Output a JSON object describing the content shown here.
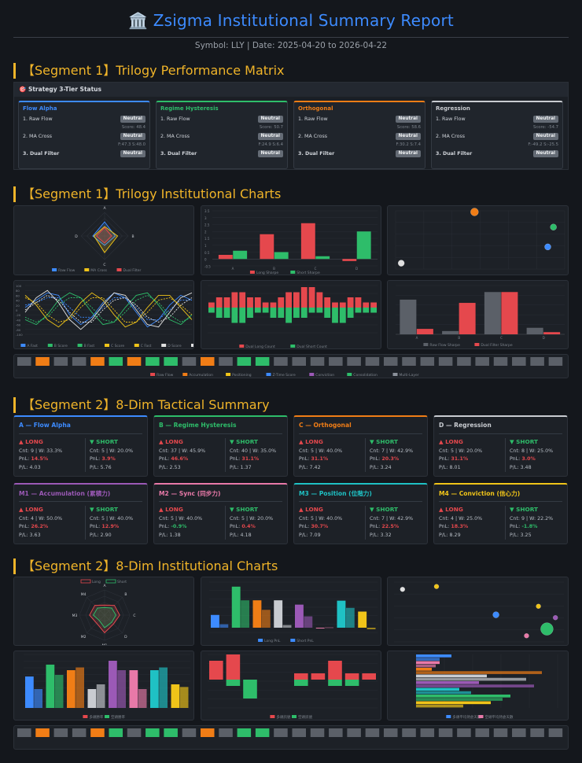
{
  "header": {
    "icon": "🏛️",
    "title": "Zsigma Institutional Summary Report",
    "subtitle": "Symbol: LLY | Date: 2025-04-20 to 2026-04-22"
  },
  "colors": {
    "accent": "#3d8bff",
    "section": "#f0b429",
    "flow": "#3d8bff",
    "regime": "#2ebd6a",
    "ortho": "#f07d16",
    "regress": "#c9ccd1",
    "m1": "#9b59b6",
    "m2": "#e879a8",
    "m3": "#1fc1c4",
    "m4": "#f0c419",
    "long": "#e5484d",
    "short": "#2ebd6a"
  },
  "sections": {
    "s1": "【Segment 1】Trilogy Performance Matrix",
    "s2": "【Segment 1】Trilogy Institutional Charts",
    "s3": "【Segment 2】8-Dim Tactical Summary",
    "s4": "【Segment 2】8-Dim Institutional Charts"
  },
  "matrix": {
    "header": "🎯 Strategy 3-Tier Status",
    "cards": [
      {
        "title": "Flow Alpha",
        "color": "#3d8bff",
        "rows": [
          {
            "label": "1. Raw Flow",
            "badge": "Neutral",
            "sub": "Score: 48.4"
          },
          {
            "label": "2. MA Cross",
            "badge": "Neutral",
            "sub": "F:47.3 S:48.0"
          },
          {
            "label": "3. Dual Filter",
            "badge": "Neutral",
            "sub": ""
          }
        ]
      },
      {
        "title": "Regime Hysteresis",
        "color": "#2ebd6a",
        "rows": [
          {
            "label": "1. Raw Flow",
            "badge": "Neutral",
            "sub": "Score: 50.7"
          },
          {
            "label": "2. MA Cross",
            "badge": "Neutral",
            "sub": "F:24.9 S:6.4"
          },
          {
            "label": "3. Dual Filter",
            "badge": "Neutral",
            "sub": ""
          }
        ]
      },
      {
        "title": "Orthogonal",
        "color": "#f07d16",
        "rows": [
          {
            "label": "1. Raw Flow",
            "badge": "Neutral",
            "sub": "Score: 58.6"
          },
          {
            "label": "2. MA Cross",
            "badge": "Neutral",
            "sub": "F:30.2 S:7.4"
          },
          {
            "label": "3. Dual Filter",
            "badge": "Neutral",
            "sub": ""
          }
        ]
      },
      {
        "title": "Regression",
        "color": "#c9ccd1",
        "rows": [
          {
            "label": "1. Raw Flow",
            "badge": "Neutral",
            "sub": "Score: -54.7"
          },
          {
            "label": "2. MA Cross",
            "badge": "Neutral",
            "sub": "F:-49.2 S:-25.5"
          },
          {
            "label": "3. Dual Filter",
            "badge": "Neutral",
            "sub": ""
          }
        ]
      }
    ]
  },
  "tactical": {
    "long_label": "▲ LONG",
    "short_label": "▼ SHORT",
    "cards": [
      {
        "title": "A — Flow Alpha",
        "color": "#3d8bff",
        "long": {
          "cnt": "Cnt: 9 | W: 33.3%",
          "pnl": "14.5%",
          "pl": "P/L: 4.03"
        },
        "short": {
          "cnt": "Cnt: 5 | W: 20.0%",
          "pnl": "3.9%",
          "pl": "P/L: 5.76"
        }
      },
      {
        "title": "B — Regime Hysteresis",
        "color": "#2ebd6a",
        "long": {
          "cnt": "Cnt: 37 | W: 45.9%",
          "pnl": "46.6%",
          "pl": "P/L: 2.53"
        },
        "short": {
          "cnt": "Cnt: 40 | W: 35.0%",
          "pnl": "31.1%",
          "pl": "P/L: 1.37"
        }
      },
      {
        "title": "C — Orthogonal",
        "color": "#f07d16",
        "long": {
          "cnt": "Cnt: 5 | W: 40.0%",
          "pnl": "31.1%",
          "pl": "P/L: 7.42"
        },
        "short": {
          "cnt": "Cnt: 7 | W: 42.9%",
          "pnl": "20.3%",
          "pl": "P/L: 3.24"
        }
      },
      {
        "title": "D — Regression",
        "color": "#c9ccd1",
        "long": {
          "cnt": "Cnt: 5 | W: 20.0%",
          "pnl": "31.1%",
          "pl": "P/L: 8.01"
        },
        "short": {
          "cnt": "Cnt: 8 | W: 25.0%",
          "pnl": "3.0%",
          "pl": "P/L: 3.48"
        }
      },
      {
        "title": "M1 — Accumulation (累積力)",
        "color": "#9b59b6",
        "long": {
          "cnt": "Cnt: 4 | W: 50.0%",
          "pnl": "26.2%",
          "pl": "P/L: 3.63"
        },
        "short": {
          "cnt": "Cnt: 5 | W: 40.0%",
          "pnl": "12.9%",
          "pl": "P/L: 2.90"
        }
      },
      {
        "title": "M2 — Sync (同步力)",
        "color": "#e879a8",
        "long": {
          "cnt": "Cnt: 5 | W: 40.0%",
          "pnl": "-0.9%",
          "pl": "P/L: 1.38"
        },
        "short": {
          "cnt": "Cnt: 5 | W: 20.0%",
          "pnl": "0.4%",
          "pl": "P/L: 4.18"
        }
      },
      {
        "title": "M3 — Position (位階力)",
        "color": "#1fc1c4",
        "long": {
          "cnt": "Cnt: 5 | W: 40.0%",
          "pnl": "30.7%",
          "pl": "P/L: 7.09"
        },
        "short": {
          "cnt": "Cnt: 7 | W: 42.9%",
          "pnl": "22.5%",
          "pl": "P/L: 3.32"
        }
      },
      {
        "title": "M4 — Conviction (信心力)",
        "color": "#f0c419",
        "long": {
          "cnt": "Cnt: 4 | W: 25.0%",
          "pnl": "18.3%",
          "pl": "P/L: 8.29"
        },
        "short": {
          "cnt": "Cnt: 9 | W: 22.2%",
          "pnl": "-1.8%",
          "pl": "P/L: 3.25"
        }
      }
    ]
  },
  "chart_data": [
    {
      "id": "trilogy-radar",
      "type": "radar",
      "axes": [
        "A",
        "B",
        "C",
        "D"
      ],
      "series": [
        {
          "name": "Raw Flow",
          "color": "#3d8bff",
          "values": [
            60,
            45,
            40,
            50
          ]
        },
        {
          "name": "MA Cross",
          "color": "#f0c419",
          "values": [
            40,
            55,
            70,
            45
          ]
        },
        {
          "name": "Dual Filter",
          "color": "#e5484d",
          "values": [
            35,
            30,
            30,
            35
          ]
        }
      ]
    },
    {
      "id": "trilogy-sharpe",
      "type": "bar",
      "categories": [
        "A",
        "B",
        "C",
        "D"
      ],
      "ylim": [
        -0.5,
        3.5
      ],
      "yticks": [
        "3.5",
        "3",
        "2.5",
        "2",
        "1.5",
        "1",
        "0.5",
        "0",
        "-0.5"
      ],
      "series": [
        {
          "name": "Long Sharpe",
          "color": "#e5484d",
          "values": [
            0.3,
            1.8,
            2.6,
            -0.15
          ]
        },
        {
          "name": "Short Sharpe",
          "color": "#2ebd6a",
          "values": [
            0.6,
            0.5,
            0.2,
            2.0
          ]
        }
      ]
    },
    {
      "id": "trilogy-scatter",
      "type": "scatter",
      "xlim": [
        -10,
        50
      ],
      "ylim": [
        -5,
        45
      ],
      "points": [
        {
          "x": -8,
          "y": 0,
          "color": "#e0e0e0",
          "size": 4
        },
        {
          "x": 18,
          "y": 44,
          "color": "#f07d16",
          "size": 5
        },
        {
          "x": 44,
          "y": 14,
          "color": "#3d8bff",
          "size": 4
        },
        {
          "x": 46,
          "y": 31,
          "color": "#2ebd6a",
          "size": 4
        }
      ]
    },
    {
      "id": "trilogy-lines",
      "type": "line",
      "ylim": [
        -100,
        100
      ],
      "yticks": [
        "100",
        "80",
        "60",
        "40",
        "20",
        "0",
        "-20",
        "-40",
        "-60",
        "-80",
        "-100"
      ],
      "series": [
        {
          "name": "A Score",
          "color": "#3d8bff",
          "dash": false,
          "values": [
            10,
            40,
            70,
            60,
            -20,
            -60,
            -30,
            30,
            70,
            50,
            -10,
            -70,
            -40,
            20,
            60,
            40
          ]
        },
        {
          "name": "A Fast",
          "color": "#3d8bff",
          "dash": true,
          "values": [
            20,
            30,
            50,
            50,
            10,
            -30,
            -30,
            10,
            50,
            50,
            10,
            -40,
            -40,
            0,
            40,
            40
          ]
        },
        {
          "name": "B Score",
          "color": "#2ebd6a",
          "dash": false,
          "values": [
            -40,
            -60,
            -20,
            40,
            70,
            50,
            -10,
            -60,
            -50,
            10,
            60,
            70,
            20,
            -40,
            -60,
            -20
          ]
        },
        {
          "name": "B Fast",
          "color": "#2ebd6a",
          "dash": true,
          "values": [
            -30,
            -50,
            -30,
            20,
            50,
            50,
            10,
            -40,
            -50,
            -10,
            40,
            60,
            30,
            -20,
            -50,
            -30
          ]
        },
        {
          "name": "C Score",
          "color": "#f0c419",
          "dash": false,
          "values": [
            60,
            20,
            -40,
            -70,
            -30,
            30,
            70,
            40,
            -20,
            -70,
            -50,
            10,
            60,
            60,
            10,
            -40
          ]
        },
        {
          "name": "C Fast",
          "color": "#f0c419",
          "dash": true,
          "values": [
            50,
            30,
            -20,
            -50,
            -40,
            10,
            50,
            50,
            0,
            -50,
            -50,
            -10,
            40,
            50,
            20,
            -20
          ]
        },
        {
          "name": "D Score",
          "color": "#e0e0e0",
          "dash": false,
          "values": [
            -10,
            50,
            80,
            30,
            -40,
            -80,
            -40,
            20,
            70,
            60,
            0,
            -60,
            -70,
            -10,
            50,
            70
          ]
        },
        {
          "name": "D Fast",
          "color": "#e0e0e0",
          "dash": true,
          "values": [
            0,
            30,
            60,
            40,
            -10,
            -50,
            -50,
            0,
            40,
            50,
            20,
            -30,
            -50,
            -30,
            20,
            50
          ]
        }
      ]
    },
    {
      "id": "trilogy-dual",
      "type": "bar",
      "series": [
        {
          "name": "Dual Long Count",
          "color": "#e5484d",
          "values": [
            1,
            2,
            2,
            3,
            3,
            2,
            2,
            1,
            1,
            2,
            3,
            3,
            4,
            4,
            3,
            2,
            1,
            1,
            2,
            2,
            1,
            1
          ]
        },
        {
          "name": "Dual Short Count",
          "color": "#2ebd6a",
          "values": [
            -1,
            -2,
            -2,
            -3,
            -3,
            -2,
            -1,
            -1,
            -2,
            -2,
            -3,
            -2,
            -2,
            -1,
            -1,
            -2,
            -3,
            -3,
            -2,
            -1,
            -1,
            -1
          ]
        }
      ]
    },
    {
      "id": "trilogy-maxdd",
      "type": "bar",
      "categories": [
        "A",
        "B",
        "C",
        "D"
      ],
      "series": [
        {
          "name": "Raw Flow Sharpe",
          "color": "#5b6068",
          "values": [
            3.2,
            0.3,
            3.9,
            0.6
          ]
        },
        {
          "name": "Dual Filter Sharpe",
          "color": "#e5484d",
          "values": [
            0.5,
            2.9,
            3.9,
            0.2
          ]
        }
      ]
    },
    {
      "id": "trilogy-strip",
      "type": "heatmap",
      "legend": [
        "Raw Flow",
        "Accumulation",
        "Positioning",
        "Z-Time Score",
        "Conviction",
        "Consolidation",
        "Multi-Layer"
      ],
      "cells": [
        "#5b6068",
        "#f07d16",
        "#5b6068",
        "#5b6068",
        "#f07d16",
        "#2ebd6a",
        "#f07d16",
        "#2ebd6a",
        "#2ebd6a",
        "#5b6068",
        "#f07d16",
        "#5b6068",
        "#2ebd6a",
        "#2ebd6a",
        "#5b6068",
        "#5b6068",
        "#5b6068",
        "#5b6068",
        "#5b6068",
        "#5b6068",
        "#5b6068",
        "#5b6068",
        "#5b6068",
        "#5b6068",
        "#5b6068",
        "#5b6068",
        "#5b6068",
        "#5b6068",
        "#5b6068",
        "#5b6068"
      ]
    },
    {
      "id": "dim-radar",
      "type": "radar",
      "axes": [
        "A",
        "B",
        "C",
        "D",
        "M1",
        "M2",
        "M3",
        "M4"
      ],
      "series": [
        {
          "name": "Long",
          "color": "#e5484d",
          "values": [
            40,
            55,
            60,
            50,
            70,
            45,
            60,
            55
          ]
        },
        {
          "name": "Short",
          "color": "#2ebd6a",
          "values": [
            30,
            40,
            45,
            40,
            50,
            30,
            45,
            40
          ]
        }
      ]
    },
    {
      "id": "dim-pnl",
      "type": "bar",
      "categories": [
        "A",
        "B",
        "C",
        "D",
        "M1",
        "M2",
        "M3",
        "M4"
      ],
      "series": [
        {
          "name": "Long PnL",
          "color": "long",
          "values": [
            14.5,
            46.6,
            31.1,
            31.1,
            26.2,
            -0.9,
            30.7,
            18.3
          ]
        },
        {
          "name": "Short PnL",
          "color": "short",
          "values": [
            3.9,
            31.1,
            20.3,
            3.0,
            12.9,
            0.4,
            22.5,
            -1.8
          ]
        }
      ]
    },
    {
      "id": "dim-scatter",
      "type": "scatter",
      "points": [
        {
          "x": 5,
          "y": 90,
          "color": "#e0e0e0",
          "size": 3
        },
        {
          "x": 25,
          "y": 95,
          "color": "#f0c419",
          "size": 3
        },
        {
          "x": 60,
          "y": 45,
          "color": "#3d8bff",
          "size": 4
        },
        {
          "x": 85,
          "y": 60,
          "color": "#f0c419",
          "size": 3
        },
        {
          "x": 90,
          "y": 20,
          "color": "#2ebd6a",
          "size": 8
        },
        {
          "x": 78,
          "y": 8,
          "color": "#e879a8",
          "size": 3
        },
        {
          "x": 95,
          "y": 40,
          "color": "#9b59b6",
          "size": 3
        }
      ]
    },
    {
      "id": "dim-winrate",
      "type": "bar",
      "categories": [
        "A",
        "B",
        "C",
        "D",
        "M1",
        "M2",
        "M3",
        "M4"
      ],
      "series": [
        {
          "name": "多頭勝率",
          "color": "long",
          "values": [
            33.3,
            45.9,
            40.0,
            20.0,
            50.0,
            40.0,
            40.0,
            25.0
          ]
        },
        {
          "name": "空頭勝率",
          "color": "short",
          "values": [
            20.0,
            35.0,
            42.9,
            25.0,
            40.0,
            20.0,
            42.9,
            22.2
          ]
        }
      ]
    },
    {
      "id": "dim-dual",
      "type": "bar",
      "series": [
        {
          "name": "多頭訊號",
          "color": "#e5484d",
          "values": [
            3,
            4,
            0,
            0,
            0,
            1,
            1,
            3,
            1,
            1
          ]
        },
        {
          "name": "空頭訊號",
          "color": "#2ebd6a",
          "values": [
            0,
            -1,
            -3,
            0,
            0,
            -1,
            0,
            -1,
            -1,
            0
          ]
        }
      ]
    },
    {
      "id": "dim-hbar",
      "type": "hbar",
      "series": [
        {
          "name": "多頭平均持倉天數",
          "color": "#3d8bff",
          "values": [
            45,
            30,
            20,
            90,
            80,
            55,
            120,
            95
          ]
        },
        {
          "name": "空頭平均持倉天數",
          "color": "#e879a8",
          "values": [
            30,
            25,
            160,
            140,
            150,
            70,
            110,
            60
          ]
        }
      ]
    },
    {
      "id": "dim-strip",
      "type": "heatmap",
      "cells": [
        "#5b6068",
        "#f07d16",
        "#5b6068",
        "#5b6068",
        "#f07d16",
        "#2ebd6a",
        "#5b6068",
        "#2ebd6a",
        "#2ebd6a",
        "#5b6068",
        "#f07d16",
        "#5b6068",
        "#2ebd6a",
        "#2ebd6a",
        "#5b6068",
        "#5b6068",
        "#5b6068",
        "#5b6068",
        "#5b6068",
        "#5b6068",
        "#5b6068",
        "#5b6068",
        "#5b6068",
        "#5b6068",
        "#5b6068",
        "#5b6068",
        "#5b6068",
        "#5b6068",
        "#5b6068",
        "#5b6068"
      ]
    }
  ]
}
